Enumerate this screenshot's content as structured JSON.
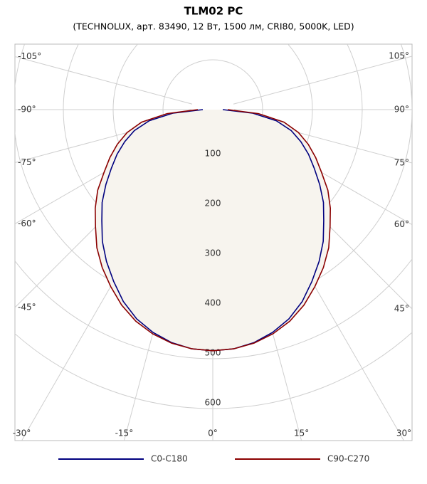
{
  "chart_data": {
    "type": "polar",
    "title": "TLM02 PC",
    "subtitle": "(TECHNOLUX, арт. 83490, 12 Вт, 1500 лм, CRI80, 5000K, LED)",
    "x": [
      -90,
      -85,
      -80,
      -75,
      -70,
      -65,
      -60,
      -55,
      -50,
      -45,
      -40,
      -35,
      -30,
      -25,
      -20,
      -15,
      -10,
      -5,
      0,
      5,
      10,
      15,
      20,
      25,
      30,
      35,
      40,
      45,
      50,
      55,
      60,
      65,
      70,
      75,
      80,
      85,
      90
    ],
    "series": [
      {
        "name": "C0-C180",
        "color": "#00007f",
        "values": [
          20,
          80,
          130,
          163,
          188,
          212,
          235,
          262,
          290,
          315,
          345,
          372,
          398,
          425,
          447,
          463,
          475,
          482,
          484,
          482,
          475,
          463,
          447,
          425,
          398,
          372,
          345,
          315,
          290,
          262,
          235,
          212,
          188,
          163,
          130,
          80,
          20
        ]
      },
      {
        "name": "C90-C270",
        "color": "#8b0000",
        "values": [
          30,
          92,
          145,
          178,
          204,
          228,
          252,
          282,
          308,
          333,
          362,
          387,
          410,
          433,
          452,
          466,
          476,
          482,
          484,
          482,
          476,
          466,
          452,
          433,
          410,
          387,
          362,
          333,
          308,
          282,
          252,
          228,
          204,
          178,
          145,
          92,
          30
        ]
      }
    ],
    "fill_color": "#f7f4ee",
    "rticks": [
      100,
      200,
      300,
      400,
      500,
      600
    ],
    "thetaticks": [
      {
        "value": -105,
        "label": "-105°"
      },
      {
        "value": -90,
        "label": "-90°"
      },
      {
        "value": -75,
        "label": "-75°"
      },
      {
        "value": -60,
        "label": "-60°"
      },
      {
        "value": -45,
        "label": "-45°"
      },
      {
        "value": -30,
        "label": "-30°"
      },
      {
        "value": -15,
        "label": "-15°"
      },
      {
        "value": 0,
        "label": "0°"
      },
      {
        "value": 15,
        "label": "15°"
      },
      {
        "value": 30,
        "label": "30°"
      },
      {
        "value": 45,
        "label": "45°"
      },
      {
        "value": 60,
        "label": "60°"
      },
      {
        "value": 75,
        "label": "75°"
      },
      {
        "value": 90,
        "label": "90°"
      },
      {
        "value": 105,
        "label": "105°"
      }
    ],
    "legend": "bottom"
  }
}
